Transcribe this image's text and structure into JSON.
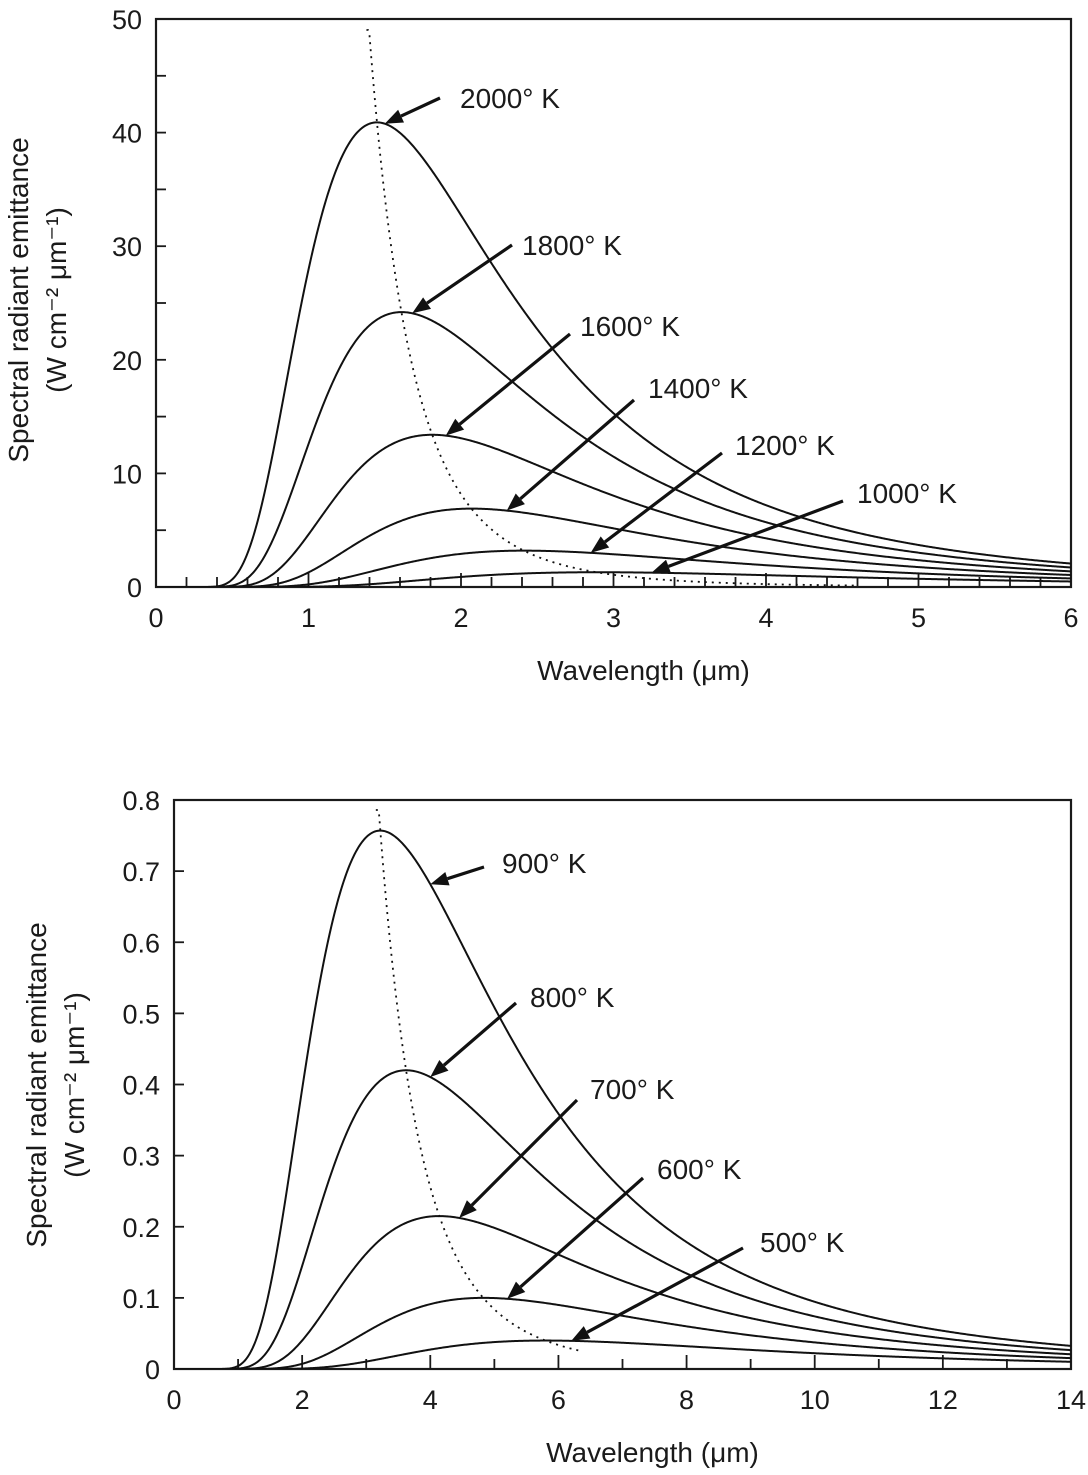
{
  "chart_data": [
    {
      "type": "line",
      "title": "",
      "xlabel": "Wavelength (μm)",
      "ylabel_line1": "Spectral radiant emittance",
      "ylabel_line2": "(W cm⁻² μm⁻¹)",
      "xlim": [
        0,
        6
      ],
      "ylim": [
        0,
        50
      ],
      "x_ticks": [
        "0",
        "1",
        "2",
        "3",
        "4",
        "5",
        "6"
      ],
      "x_tick_values": [
        0,
        1,
        2,
        3,
        4,
        5,
        6
      ],
      "x_minor_step": 0.2,
      "y_ticks": [
        "0",
        "10",
        "20",
        "30",
        "40",
        "50"
      ],
      "y_tick_values": [
        0,
        10,
        20,
        30,
        40,
        50
      ],
      "y_minor_step": 5,
      "grid": false,
      "model": "planck",
      "series": [
        {
          "name": "2000° K",
          "temperature_K": 2000,
          "peak_wavelength_um": 1.45,
          "peak_value": 40.9,
          "label_arrow_target_x": 1.5
        },
        {
          "name": "1800° K",
          "temperature_K": 1800,
          "peak_wavelength_um": 1.61,
          "peak_value": 24.2,
          "label_arrow_target_x": 1.68
        },
        {
          "name": "1600° K",
          "temperature_K": 1600,
          "peak_wavelength_um": 1.81,
          "peak_value": 13.4,
          "label_arrow_target_x": 1.9
        },
        {
          "name": "1400° K",
          "temperature_K": 1400,
          "peak_wavelength_um": 2.07,
          "peak_value": 6.9,
          "label_arrow_target_x": 2.3
        },
        {
          "name": "1200° K",
          "temperature_K": 1200,
          "peak_wavelength_um": 2.41,
          "peak_value": 3.2,
          "label_arrow_target_x": 2.85
        },
        {
          "name": "1000° K",
          "temperature_K": 1000,
          "peak_wavelength_um": 2.9,
          "peak_value": 1.3,
          "label_arrow_target_x": 3.25
        }
      ],
      "wien_locus": {
        "style": "dotted",
        "x_range": [
          1.38,
          4.6
        ]
      }
    },
    {
      "type": "line",
      "title": "",
      "xlabel": "Wavelength (μm)",
      "ylabel_line1": "Spectral radiant emittance",
      "ylabel_line2": "(W cm⁻² μm⁻¹)",
      "xlim": [
        0,
        14
      ],
      "ylim": [
        0,
        0.8
      ],
      "x_ticks": [
        "0",
        "2",
        "4",
        "6",
        "8",
        "10",
        "12",
        "14"
      ],
      "x_tick_values": [
        0,
        2,
        4,
        6,
        8,
        10,
        12,
        14
      ],
      "x_minor_step": 1,
      "y_ticks": [
        "0",
        "0.1",
        "0.2",
        "0.3",
        "0.4",
        "0.5",
        "0.6",
        "0.7",
        "0.8"
      ],
      "y_tick_values": [
        0,
        0.1,
        0.2,
        0.3,
        0.4,
        0.5,
        0.6,
        0.7,
        0.8
      ],
      "y_minor_step": null,
      "grid": false,
      "model": "planck",
      "series": [
        {
          "name": "900° K",
          "temperature_K": 900,
          "peak_wavelength_um": 3.22,
          "peak_value": 0.757,
          "label_arrow_target_x": 4.0
        },
        {
          "name": "800° K",
          "temperature_K": 800,
          "peak_wavelength_um": 3.62,
          "peak_value": 0.42,
          "label_arrow_target_x": 4.0
        },
        {
          "name": "700° K",
          "temperature_K": 700,
          "peak_wavelength_um": 4.14,
          "peak_value": 0.215,
          "label_arrow_target_x": 4.45
        },
        {
          "name": "600° K",
          "temperature_K": 600,
          "peak_wavelength_um": 4.83,
          "peak_value": 0.1,
          "label_arrow_target_x": 5.2
        },
        {
          "name": "500° K",
          "temperature_K": 500,
          "peak_wavelength_um": 5.8,
          "peak_value": 0.04,
          "label_arrow_target_x": 6.2
        }
      ],
      "wien_locus": {
        "style": "dotted",
        "x_range": [
          3.15,
          6.35
        ]
      }
    }
  ]
}
